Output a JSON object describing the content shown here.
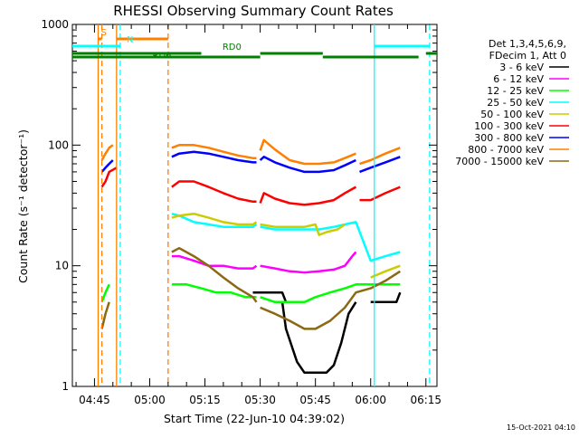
{
  "chart_data": {
    "type": "line",
    "title": "RHESSI Observing Summary Count Rates",
    "xlabel": "Start Time (22-Jun-10 04:39:02)",
    "ylabel": "Count Rate (s⁻¹ detector⁻¹)",
    "yscale": "log",
    "ylim": [
      1,
      1000
    ],
    "yticks": [
      {
        "value": 1,
        "label": "1"
      },
      {
        "value": 10,
        "label": "10"
      },
      {
        "value": 100,
        "label": "100"
      },
      {
        "value": 1000,
        "label": "1000"
      }
    ],
    "xlim": [
      "04:39",
      "06:18"
    ],
    "xticks": [
      {
        "t": 6,
        "label": "04:45"
      },
      {
        "t": 21,
        "label": "05:00"
      },
      {
        "t": 36,
        "label": "05:15"
      },
      {
        "t": 51,
        "label": "05:30"
      },
      {
        "t": 66,
        "label": "05:45"
      },
      {
        "t": 81,
        "label": "06:00"
      },
      {
        "t": 96,
        "label": "06:15"
      }
    ],
    "grid": false,
    "legend": {
      "placement": "right",
      "header": [
        "Det 1,3,4,5,6,9,",
        "FDecim 1, Att 0"
      ]
    },
    "series": [
      {
        "name": "3 - 6 keV",
        "color": "#000000",
        "segments": [
          {
            "t": [
              49,
              57,
              58,
              59
            ],
            "v": [
              6,
              6,
              5,
              5
            ]
          },
          {
            "t": [
              57,
              58,
              61,
              63,
              65,
              67,
              69,
              71,
              73,
              75,
              77
            ],
            "v": [
              5,
              3,
              1.6,
              1.3,
              1.3,
              1.3,
              1.3,
              1.5,
              2.3,
              4,
              5
            ]
          },
          {
            "t": [
              81,
              88,
              89
            ],
            "v": [
              5,
              5,
              6
            ]
          }
        ]
      },
      {
        "name": "6 - 12 keV",
        "color": "#ff00ff",
        "segments": [
          {
            "t": [
              27,
              29,
              33,
              37,
              41,
              45,
              49,
              50
            ],
            "v": [
              12,
              12,
              11,
              10,
              10,
              9.5,
              9.5,
              10
            ]
          },
          {
            "t": [
              51,
              55,
              59,
              63,
              67,
              71,
              74,
              76,
              77
            ],
            "v": [
              10,
              9.5,
              9,
              8.8,
              9,
              9.3,
              10,
              12,
              13
            ]
          }
        ]
      },
      {
        "name": "12 - 25 keV",
        "color": "#00ff00",
        "segments": [
          {
            "t": [
              8,
              9,
              10
            ],
            "v": [
              5,
              6,
              7
            ]
          },
          {
            "t": [
              27,
              31,
              35,
              39,
              43,
              47,
              50
            ],
            "v": [
              7,
              7,
              6.5,
              6,
              6,
              5.5,
              5.5
            ]
          },
          {
            "t": [
              51,
              55,
              59,
              63,
              66,
              70,
              74,
              77,
              81,
              85,
              89
            ],
            "v": [
              5.5,
              5,
              5,
              5,
              5.5,
              6,
              6.5,
              7,
              7,
              7,
              7
            ]
          }
        ]
      },
      {
        "name": "25 - 50 keV",
        "color": "#00ffff",
        "segments": [
          {
            "t": [
              27,
              29,
              33,
              37,
              41,
              45,
              49,
              50
            ],
            "v": [
              27,
              26,
              23,
              22,
              21,
              21,
              21,
              22
            ]
          },
          {
            "t": [
              51,
              55,
              59,
              63,
              67,
              71,
              74,
              77,
              81,
              85,
              89
            ],
            "v": [
              21,
              20,
              20,
              20,
              20,
              21,
              22,
              23,
              11,
              12,
              13
            ]
          }
        ]
      },
      {
        "name": "50 - 100 keV",
        "color": "#cccc00",
        "segments": [
          {
            "t": [
              27,
              29,
              33,
              37,
              41,
              45,
              49,
              50
            ],
            "v": [
              25,
              26,
              27,
              25,
              23,
              22,
              22,
              23
            ]
          },
          {
            "t": [
              51,
              55,
              59,
              63,
              66,
              67,
              69,
              72,
              74
            ],
            "v": [
              22,
              21,
              21,
              21,
              22,
              18,
              19,
              20,
              22
            ]
          },
          {
            "t": [
              81,
              85,
              89
            ],
            "v": [
              8,
              9,
              10
            ]
          }
        ]
      },
      {
        "name": "100 - 300 keV",
        "color": "#ff0000",
        "segments": [
          {
            "t": [
              8,
              9,
              10,
              12
            ],
            "v": [
              45,
              50,
              60,
              65
            ]
          },
          {
            "t": [
              27,
              29,
              33,
              37,
              41,
              45,
              49,
              50
            ],
            "v": [
              45,
              50,
              50,
              45,
              40,
              36,
              34,
              34
            ]
          },
          {
            "t": [
              51,
              52,
              55,
              59,
              63,
              67,
              71,
              74,
              77
            ],
            "v": [
              33,
              40,
              36,
              33,
              32,
              33,
              35,
              40,
              45
            ]
          },
          {
            "t": [
              78,
              81,
              85,
              89
            ],
            "v": [
              35,
              35,
              40,
              45
            ]
          }
        ]
      },
      {
        "name": "300 - 800 keV",
        "color": "#0000ff",
        "segments": [
          {
            "t": [
              8,
              9,
              10,
              11
            ],
            "v": [
              60,
              65,
              70,
              75
            ]
          },
          {
            "t": [
              27,
              29,
              33,
              37,
              41,
              45,
              49,
              50
            ],
            "v": [
              80,
              85,
              88,
              85,
              80,
              75,
              72,
              72
            ]
          },
          {
            "t": [
              51,
              52,
              55,
              59,
              63,
              67,
              71,
              74,
              77
            ],
            "v": [
              75,
              80,
              72,
              65,
              60,
              60,
              62,
              68,
              75
            ]
          },
          {
            "t": [
              78,
              81,
              85,
              89
            ],
            "v": [
              60,
              65,
              72,
              80
            ]
          }
        ]
      },
      {
        "name": "800 - 7000 keV",
        "color": "#ff8000",
        "segments": [
          {
            "t": [
              8,
              9,
              10,
              11
            ],
            "v": [
              75,
              85,
              95,
              100
            ]
          },
          {
            "t": [
              27,
              29,
              33,
              37,
              41,
              45,
              49,
              50
            ],
            "v": [
              95,
              100,
              100,
              95,
              88,
              82,
              78,
              78
            ]
          },
          {
            "t": [
              51,
              52,
              55,
              59,
              63,
              67,
              71,
              74,
              77
            ],
            "v": [
              90,
              110,
              92,
              75,
              70,
              70,
              72,
              78,
              85
            ]
          },
          {
            "t": [
              78,
              81,
              85,
              89
            ],
            "v": [
              70,
              75,
              85,
              95
            ]
          }
        ]
      },
      {
        "name": "7000 - 15000 keV",
        "color": "#8b6914",
        "segments": [
          {
            "t": [
              8,
              9,
              10
            ],
            "v": [
              3,
              4,
              5
            ]
          },
          {
            "t": [
              27,
              29,
              33,
              37,
              41,
              45,
              49,
              50
            ],
            "v": [
              13,
              14,
              12,
              10,
              8,
              6.5,
              5.5,
              5
            ]
          },
          {
            "t": [
              51,
              55,
              59,
              63,
              66,
              70,
              74,
              77,
              81,
              85,
              89
            ],
            "v": [
              4.5,
              4,
              3.5,
              3,
              3,
              3.5,
              4.5,
              6,
              6.5,
              7.5,
              9
            ]
          }
        ]
      }
    ],
    "vertical_markers": [
      {
        "t": 7,
        "color": "#ff8000",
        "style": "solid"
      },
      {
        "t": 12,
        "color": "#ff8000",
        "style": "solid"
      },
      {
        "t": 8,
        "color": "#ff8000",
        "style": "dashed"
      },
      {
        "t": 26,
        "color": "#ff8000",
        "style": "dashed"
      },
      {
        "t": 13,
        "color": "#00ffff",
        "style": "dashed"
      },
      {
        "t": 82,
        "color": "#00ffff",
        "style": "solid"
      },
      {
        "t": 97,
        "color": "#00ffff",
        "style": "dashed"
      }
    ],
    "annotations": [
      {
        "label": "S",
        "color": "#ff8000",
        "t": 7,
        "logv": 2.91
      },
      {
        "label": "N",
        "color": "#00ffff",
        "t": 14,
        "logv": 2.85
      },
      {
        "label": "RD0",
        "color": "#008000",
        "t": 40,
        "logv": 2.79
      },
      {
        "label": "RD6",
        "color": "#008000",
        "t": 21,
        "logv": 2.72
      }
    ],
    "bars": [
      {
        "color": "#ff8000",
        "logv": 2.88,
        "ranges": [
          [
            7,
            8
          ],
          [
            12,
            26
          ]
        ]
      },
      {
        "color": "#00ffff",
        "logv": 2.82,
        "ranges": [
          [
            0,
            13
          ],
          [
            82,
            97
          ]
        ]
      },
      {
        "color": "#008000",
        "logv": 2.76,
        "ranges": [
          [
            0,
            35
          ],
          [
            51,
            68
          ],
          [
            96,
            99
          ]
        ]
      },
      {
        "color": "#008000",
        "logv": 2.73,
        "ranges": [
          [
            0,
            35
          ],
          [
            35,
            51
          ],
          [
            68,
            94
          ]
        ]
      }
    ],
    "footer": "15-Oct-2021 04:10"
  }
}
